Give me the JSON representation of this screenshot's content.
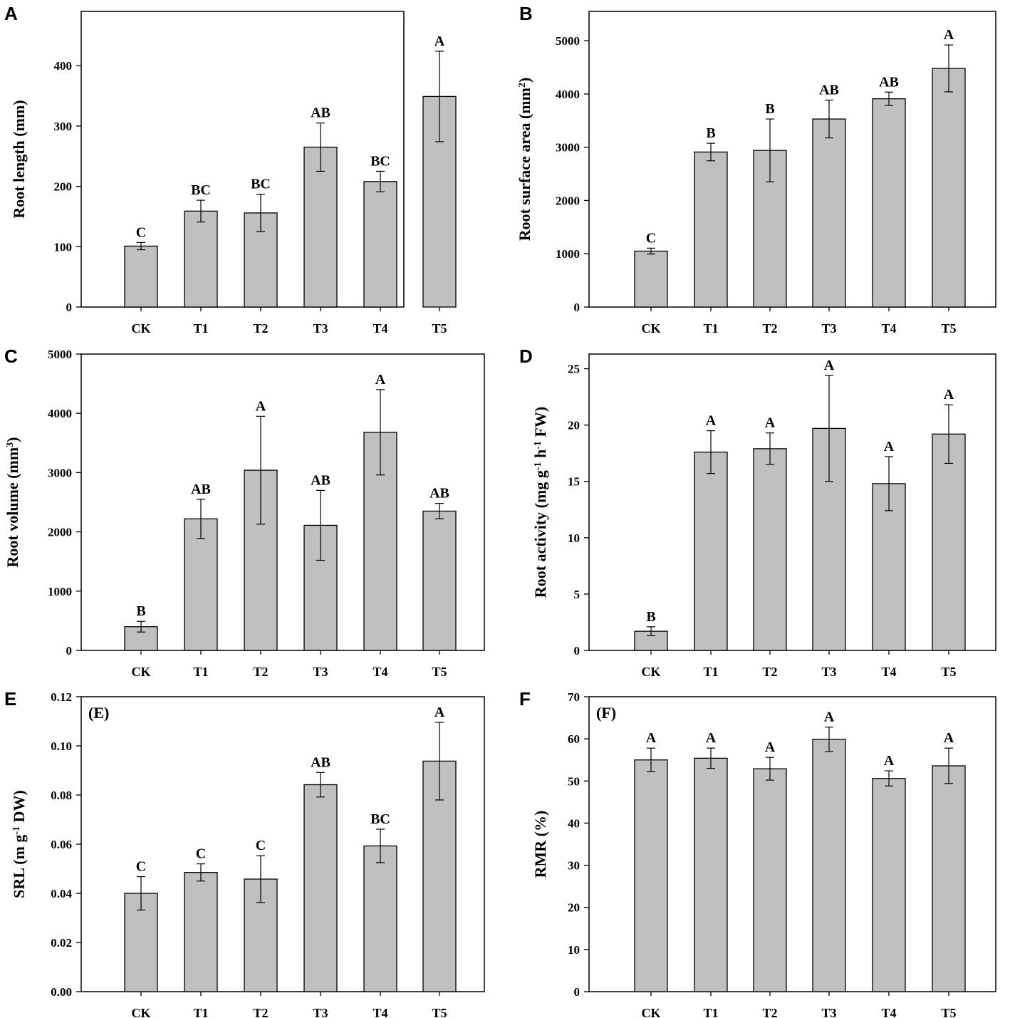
{
  "chart_data": [
    {
      "panel": "A",
      "type": "bar",
      "categories": [
        "CK",
        "T1",
        "T2",
        "T3",
        "T4",
        "T5"
      ],
      "values": [
        101,
        159,
        156,
        265,
        208,
        349
      ],
      "errors": [
        6,
        18,
        31,
        40,
        17,
        75
      ],
      "significance": [
        "C",
        "BC",
        "BC",
        "AB",
        "BC",
        "A"
      ],
      "ylabel": "Root length (mm)",
      "ylim": [
        0,
        490
      ],
      "yticks": [
        0,
        100,
        200,
        300,
        400
      ],
      "inset_label": ""
    },
    {
      "panel": "B",
      "type": "bar",
      "categories": [
        "CK",
        "T1",
        "T2",
        "T3",
        "T4",
        "T5"
      ],
      "values": [
        1050,
        2910,
        2940,
        3530,
        3910,
        4480
      ],
      "errors": [
        55,
        165,
        590,
        355,
        125,
        440
      ],
      "significance": [
        "C",
        "B",
        "B",
        "AB",
        "AB",
        "A"
      ],
      "ylabel": "Root surface area (mm",
      "ylabel_sup": "2",
      "ylabel_end": ")",
      "ylim": [
        0,
        5550
      ],
      "yticks": [
        0,
        1000,
        2000,
        3000,
        4000,
        5000
      ],
      "inset_label": ""
    },
    {
      "panel": "C",
      "type": "bar",
      "categories": [
        "CK",
        "T1",
        "T2",
        "T3",
        "T4",
        "T5"
      ],
      "values": [
        400,
        2220,
        3040,
        2110,
        3680,
        2350
      ],
      "errors": [
        90,
        330,
        910,
        590,
        720,
        130
      ],
      "significance": [
        "B",
        "AB",
        "A",
        "AB",
        "A",
        "AB"
      ],
      "ylabel": "Root volume (mm",
      "ylabel_sup": "3",
      "ylabel_end": ")",
      "ylim": [
        0,
        5000
      ],
      "yticks": [
        0,
        1000,
        2000,
        3000,
        4000,
        5000
      ],
      "inset_label": ""
    },
    {
      "panel": "D",
      "type": "bar",
      "categories": [
        "CK",
        "T1",
        "T2",
        "T3",
        "T4",
        "T5"
      ],
      "values": [
        1.7,
        17.6,
        17.9,
        19.7,
        14.8,
        19.2
      ],
      "errors": [
        0.4,
        1.9,
        1.4,
        4.7,
        2.4,
        2.6
      ],
      "significance": [
        "B",
        "A",
        "A",
        "A",
        "A",
        "A"
      ],
      "ylabel_parts": [
        "Root activity (mg g",
        "-1",
        " h",
        "-1",
        " FW)"
      ],
      "ylim": [
        0,
        26.3
      ],
      "yticks": [
        0,
        5,
        10,
        15,
        20,
        25
      ],
      "inset_label": ""
    },
    {
      "panel": "E",
      "type": "bar",
      "categories": [
        "CK",
        "T1",
        "T2",
        "T3",
        "T4",
        "T5"
      ],
      "values": [
        0.04,
        0.0485,
        0.0458,
        0.0842,
        0.0593,
        0.0938
      ],
      "errors": [
        0.0068,
        0.0035,
        0.0095,
        0.005,
        0.0068,
        0.0158
      ],
      "significance": [
        "C",
        "C",
        "C",
        "AB",
        "BC",
        "A"
      ],
      "ylabel_parts": [
        "SRL (m g",
        "-1",
        " DW)"
      ],
      "ylim": [
        0,
        0.12
      ],
      "yticks": [
        "0.00",
        "0.02",
        "0.04",
        "0.06",
        "0.08",
        "0.10",
        "0.12"
      ],
      "inset_label": "(E)"
    },
    {
      "panel": "F",
      "type": "bar",
      "categories": [
        "CK",
        "T1",
        "T2",
        "T3",
        "T4",
        "T5"
      ],
      "values": [
        55,
        55.4,
        52.9,
        59.9,
        50.6,
        53.6
      ],
      "errors": [
        2.8,
        2.4,
        2.7,
        2.9,
        1.8,
        4.2
      ],
      "significance": [
        "A",
        "A",
        "A",
        "A",
        "A",
        "A"
      ],
      "ylabel": "RMR (%)",
      "ylim": [
        0,
        70
      ],
      "yticks": [
        0,
        10,
        20,
        30,
        40,
        50,
        60,
        70
      ],
      "inset_label": "(F)"
    }
  ]
}
